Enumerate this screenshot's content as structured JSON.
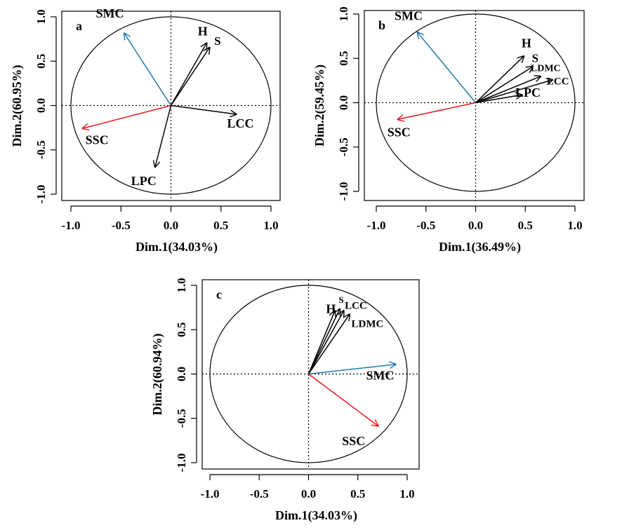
{
  "chart_data": [
    {
      "type": "scatter",
      "panel_label": "a",
      "xlabel": "Dim.1(34.03%)",
      "ylabel": "Dim.2(60.95%)",
      "xlim": [
        -1.0,
        1.0
      ],
      "ylim": [
        -1.0,
        1.0
      ],
      "x_ticks": [
        "-1.0",
        "-0.5",
        "0.0",
        "0.5",
        "1.0"
      ],
      "y_ticks": [
        "-1.0",
        "-0.5",
        "0.0",
        "0.5",
        "1.0"
      ],
      "vectors": [
        {
          "label": "SMC",
          "x": -0.47,
          "y": 0.82,
          "color": "#1f78b4"
        },
        {
          "label": "H",
          "x": 0.36,
          "y": 0.71,
          "color": "#000000"
        },
        {
          "label": "S",
          "x": 0.39,
          "y": 0.66,
          "color": "#000000"
        },
        {
          "label": "SSC",
          "x": -0.89,
          "y": -0.26,
          "color": "#e31a1c"
        },
        {
          "label": "LCC",
          "x": 0.66,
          "y": -0.1,
          "color": "#000000"
        },
        {
          "label": "LPC",
          "x": -0.16,
          "y": -0.7,
          "color": "#000000"
        }
      ]
    },
    {
      "type": "scatter",
      "panel_label": "b",
      "xlabel": "Dim.1(36.49%)",
      "ylabel": "Dim.2(59.45%)",
      "xlim": [
        -1.0,
        1.0
      ],
      "ylim": [
        -1.0,
        1.0
      ],
      "x_ticks": [
        "-1.0",
        "-0.5",
        "0.0",
        "0.5",
        "1.0"
      ],
      "y_ticks": [
        "-1.0",
        "-0.5",
        "0.0",
        "0.5",
        "1.0"
      ],
      "vectors": [
        {
          "label": "SMC",
          "x": -0.59,
          "y": 0.8,
          "color": "#1f78b4"
        },
        {
          "label": "H",
          "x": 0.49,
          "y": 0.53,
          "color": "#000000"
        },
        {
          "label": "S",
          "x": 0.58,
          "y": 0.41,
          "color": "#000000"
        },
        {
          "label": "LDMC",
          "x": 0.66,
          "y": 0.3,
          "color": "#000000"
        },
        {
          "label": "LCC",
          "x": 0.78,
          "y": 0.26,
          "color": "#000000"
        },
        {
          "label": "LPC",
          "x": 0.47,
          "y": 0.09,
          "color": "#000000"
        },
        {
          "label": "SSC",
          "x": -0.79,
          "y": -0.19,
          "color": "#e31a1c"
        }
      ]
    },
    {
      "type": "scatter",
      "panel_label": "c",
      "xlabel": "Dim.1(34.03%)",
      "ylabel": "Dim.2(60.94%)",
      "xlim": [
        -1.0,
        1.0
      ],
      "ylim": [
        -1.0,
        1.0
      ],
      "x_ticks": [
        "-1.0",
        "-0.5",
        "0.0",
        "0.5",
        "1.0"
      ],
      "y_ticks": [
        "-1.0",
        "-0.5",
        "0.0",
        "0.5",
        "1.0"
      ],
      "vectors": [
        {
          "label": "H",
          "x": 0.27,
          "y": 0.72,
          "color": "#000000"
        },
        {
          "label": "S",
          "x": 0.32,
          "y": 0.74,
          "color": "#000000"
        },
        {
          "label": "LCC",
          "x": 0.36,
          "y": 0.72,
          "color": "#000000"
        },
        {
          "label": "LDMC",
          "x": 0.42,
          "y": 0.68,
          "color": "#000000"
        },
        {
          "label": "SMC",
          "x": 0.89,
          "y": 0.11,
          "color": "#1f78b4"
        },
        {
          "label": "SSC",
          "x": 0.71,
          "y": -0.59,
          "color": "#e31a1c"
        }
      ]
    }
  ]
}
